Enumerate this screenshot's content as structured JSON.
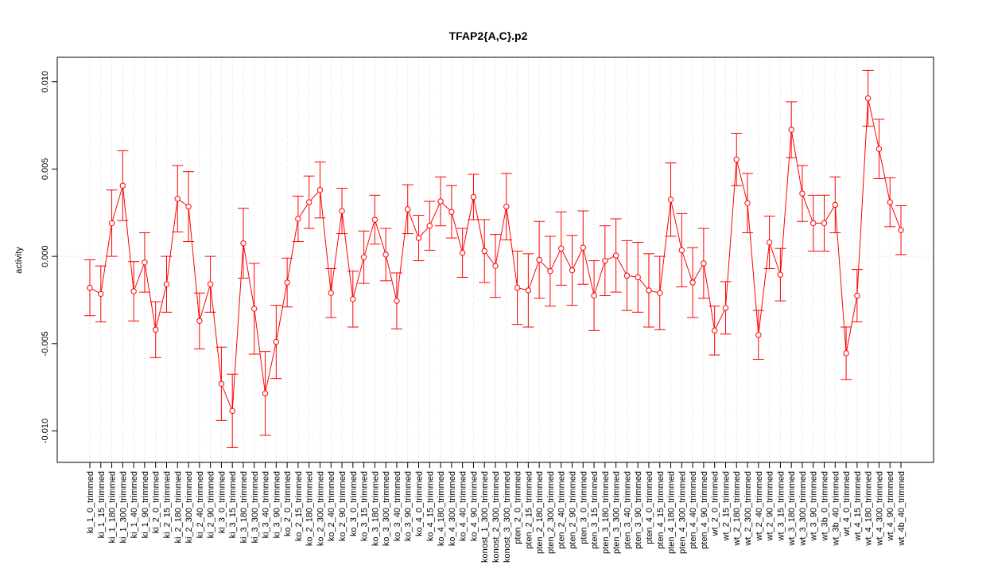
{
  "chart_data": {
    "type": "line",
    "title": "TFAP2{A,C}.p2",
    "xlabel": "",
    "ylabel": "activity",
    "ylim": [
      -0.0118,
      0.0114
    ],
    "yticks": [
      -0.01,
      -0.005,
      0.0,
      0.005,
      0.01
    ],
    "ytick_labels": [
      "-0.010",
      "-0.005",
      "0.000",
      "0.005",
      "0.010"
    ],
    "grid": true,
    "color": "#ff0000",
    "grid_color": "#d3d3d3",
    "categories": [
      "ki_1_0_trimmed",
      "ki_1_15_trimmed",
      "ki_1_180_trimmed",
      "ki_1_300_trimmed",
      "ki_1_40_trimmed",
      "ki_1_90_trimmed",
      "ki_2_0_trimmed",
      "ki_2_15_trimmed",
      "ki_2_180_trimmed",
      "ki_2_300_trimmed",
      "ki_2_40_trimmed",
      "ki_2_90_trimmed",
      "ki_3_0_trimmed",
      "ki_3_15_trimmed",
      "ki_3_180_trimmed",
      "ki_3_300_trimmed",
      "ki_3_40_trimmed",
      "ki_3_90_trimmed",
      "ko_2_0_trimmed",
      "ko_2_15_trimmed",
      "ko_2_180_trimmed",
      "ko_2_300_trimmed",
      "ko_2_40_trimmed",
      "ko_2_90_trimmed",
      "ko_3_0_trimmed",
      "ko_3_15_trimmed",
      "ko_3_180_trimmed",
      "ko_3_300_trimmed",
      "ko_3_40_trimmed",
      "ko_3_90_trimmed",
      "ko_4_0_trimmed",
      "ko_4_15_trimmed",
      "ko_4_180_trimmed",
      "ko_4_300_trimmed",
      "ko_4_40_trimmed",
      "ko_4_90_trimmed",
      "konost_1_300_trimmed",
      "konost_2_300_trimmed",
      "konost_3_300_trimmed",
      "pten_2_0_trimmed",
      "pten_2_15_trimmed",
      "pten_2_180_trimmed",
      "pten_2_300_trimmed",
      "pten_2_40_trimmed",
      "pten_2_90_trimmed",
      "pten_3_0_trimmed",
      "pten_3_15_trimmed",
      "pten_3_180_trimmed",
      "pten_3_300_trimmed",
      "pten_3_40_trimmed",
      "pten_3_90_trimmed",
      "pten_4_0_trimmed",
      "pten_4_15_trimmed",
      "pten_4_180_trimmed",
      "pten_4_300_trimmed",
      "pten_4_40_trimmed",
      "pten_4_90_trimmed",
      "wt_2_0_trimmed",
      "wt_2_15_trimmed",
      "wt_2_180_trimmed",
      "wt_2_300_trimmed",
      "wt_2_40_trimmed",
      "wt_2_90_trimmed",
      "wt_3_15_trimmed",
      "wt_3_180_trimmed",
      "wt_3_300_trimmed",
      "wt_3_90_trimmed",
      "wt_3b_0_trimmed",
      "wt_3b_40_trimmed",
      "wt_4_0_trimmed",
      "wt_4_15_trimmed",
      "wt_4_180_trimmed",
      "wt_4_300_trimmed",
      "wt_4_90_trimmed",
      "wt_4b_40_trimmed"
    ],
    "values": [
      -0.0018,
      -0.00215,
      0.0019,
      0.00405,
      -0.002,
      -0.00035,
      -0.0042,
      -0.0016,
      0.0033,
      0.00285,
      -0.0037,
      -0.0016,
      -0.0073,
      -0.00885,
      0.00075,
      -0.003,
      -0.00785,
      -0.0049,
      -0.0015,
      0.00215,
      0.0031,
      0.0038,
      -0.0021,
      0.0026,
      -0.00245,
      -5e-05,
      0.0021,
      0.0001,
      -0.00255,
      0.0027,
      0.00105,
      0.00175,
      0.00315,
      0.00255,
      0.0002,
      0.0034,
      0.0003,
      -0.00055,
      0.00285,
      -0.0018,
      -0.00195,
      -0.0002,
      -0.00085,
      0.00045,
      -0.0008,
      0.0005,
      -0.00225,
      -0.00025,
      5e-05,
      -0.0011,
      -0.0012,
      -0.00195,
      -0.0021,
      0.00325,
      0.00035,
      -0.0015,
      -0.0004,
      -0.00425,
      -0.00295,
      0.00555,
      0.00305,
      -0.0045,
      0.0008,
      -0.00105,
      0.00725,
      0.0036,
      0.0019,
      0.0019,
      0.00295,
      -0.00555,
      -0.00225,
      0.00905,
      0.00615,
      0.0031,
      0.0015
    ],
    "errors": [
      0.0016,
      0.0016,
      0.0019,
      0.002,
      0.0017,
      0.0017,
      0.0016,
      0.0016,
      0.0019,
      0.002,
      0.0016,
      0.0016,
      0.0021,
      0.0021,
      0.002,
      0.0026,
      0.0024,
      0.0021,
      0.0014,
      0.0013,
      0.0015,
      0.0016,
      0.0014,
      0.0013,
      0.0016,
      0.0015,
      0.0014,
      0.0015,
      0.0016,
      0.0014,
      0.0013,
      0.0014,
      0.0014,
      0.0015,
      0.0014,
      0.0013,
      0.0018,
      0.0018,
      0.0019,
      0.0021,
      0.0021,
      0.0022,
      0.002,
      0.0021,
      0.002,
      0.0021,
      0.002,
      0.002,
      0.0021,
      0.002,
      0.002,
      0.0021,
      0.0021,
      0.0021,
      0.0021,
      0.002,
      0.002,
      0.0014,
      0.0015,
      0.0015,
      0.0017,
      0.0014,
      0.0015,
      0.0015,
      0.0016,
      0.0016,
      0.0016,
      0.0016,
      0.0016,
      0.0015,
      0.0015,
      0.0016,
      0.0017,
      0.0014,
      0.0014
    ]
  }
}
